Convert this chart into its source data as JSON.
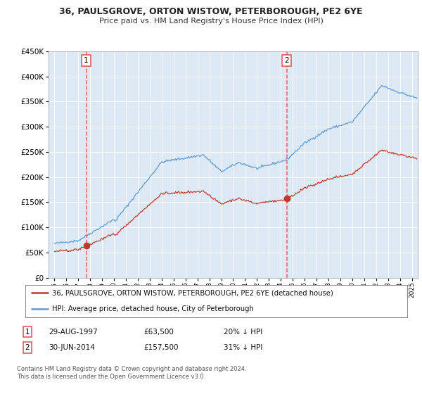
{
  "title": "36, PAULSGROVE, ORTON WISTOW, PETERBOROUGH, PE2 6YE",
  "subtitle": "Price paid vs. HM Land Registry's House Price Index (HPI)",
  "red_label": "36, PAULSGROVE, ORTON WISTOW, PETERBOROUGH, PE2 6YE (detached house)",
  "blue_label": "HPI: Average price, detached house, City of Peterborough",
  "sale1_date": "29-AUG-1997",
  "sale1_price": 63500,
  "sale1_hpi_pct": "20% ↓ HPI",
  "sale1_year": 1997.66,
  "sale2_date": "30-JUN-2014",
  "sale2_price": 157500,
  "sale2_hpi_pct": "31% ↓ HPI",
  "sale2_year": 2014.5,
  "footer1": "Contains HM Land Registry data © Crown copyright and database right 2024.",
  "footer2": "This data is licensed under the Open Government Licence v3.0.",
  "ylim": [
    0,
    450000
  ],
  "xlim_start": 1994.5,
  "xlim_end": 2025.5,
  "fig_bg": "#ffffff",
  "plot_bg": "#dce9f5",
  "red_color": "#c0392b",
  "blue_color": "#5b9bd5",
  "vline_color": "#e05050",
  "grid_color": "#ffffff"
}
